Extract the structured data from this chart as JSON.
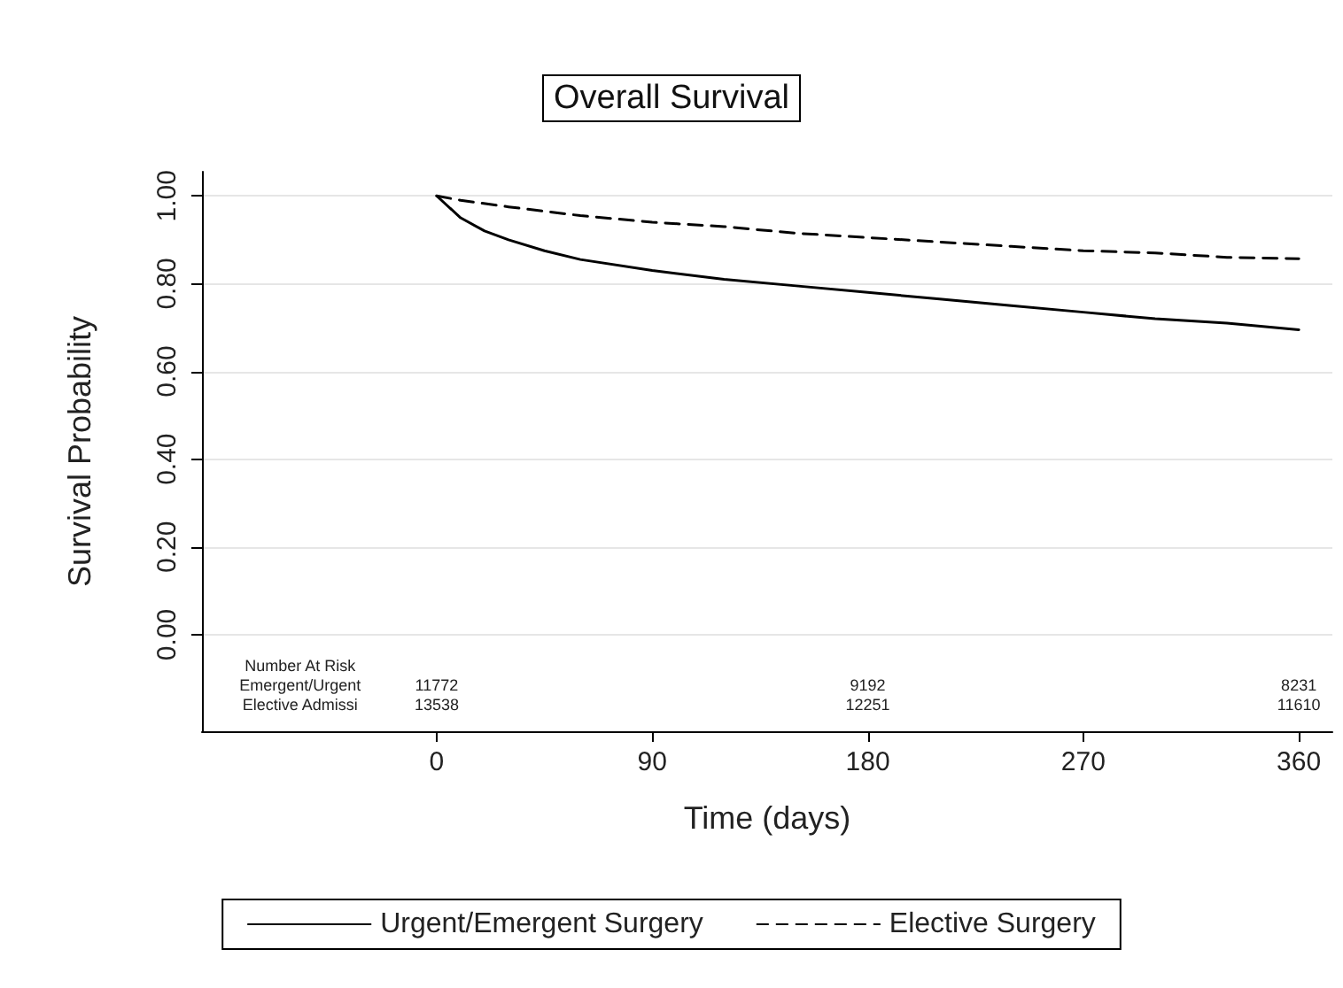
{
  "chart_data": {
    "type": "line",
    "title": "Overall Survival",
    "xlabel": "Time (days)",
    "ylabel": "Survival Probability",
    "xlim": [
      -98,
      374
    ],
    "xticks": [
      0,
      90,
      180,
      270,
      360
    ],
    "ylim": [
      -0.22,
      1.055
    ],
    "yticks": [
      {
        "value": 0,
        "label": "0.00"
      },
      {
        "value": 0.2,
        "label": "0.20"
      },
      {
        "value": 0.4,
        "label": "0.40"
      },
      {
        "value": 0.6,
        "label": "0.60"
      },
      {
        "value": 0.8,
        "label": "0.80"
      },
      {
        "value": 1,
        "label": "1.00"
      }
    ],
    "grid": "y",
    "legend": "bottom",
    "marker": "none",
    "series": [
      {
        "name": "Urgent/Emergent Surgery",
        "color": "#000000",
        "line_style": "solid",
        "x": [
          0,
          10,
          20,
          30,
          45,
          60,
          90,
          120,
          150,
          180,
          210,
          240,
          270,
          300,
          330,
          360
        ],
        "values": [
          1,
          0.95,
          0.92,
          0.9,
          0.875,
          0.855,
          0.83,
          0.81,
          0.795,
          0.78,
          0.765,
          0.75,
          0.735,
          0.72,
          0.71,
          0.695
        ]
      },
      {
        "name": "Elective Surgery",
        "color": "#000000",
        "line_style": "dashed",
        "x": [
          0,
          10,
          30,
          60,
          90,
          120,
          150,
          180,
          210,
          240,
          270,
          300,
          330,
          360
        ],
        "values": [
          1,
          0.99,
          0.975,
          0.955,
          0.94,
          0.93,
          0.915,
          0.905,
          0.895,
          0.885,
          0.875,
          0.87,
          0.86,
          0.857
        ]
      }
    ],
    "annotations": [
      "Number At Risk",
      "Emergent/Urgent",
      "11772",
      "9192",
      "8231",
      "Elective Admissi",
      "13538",
      "12251",
      "11610"
    ]
  }
}
